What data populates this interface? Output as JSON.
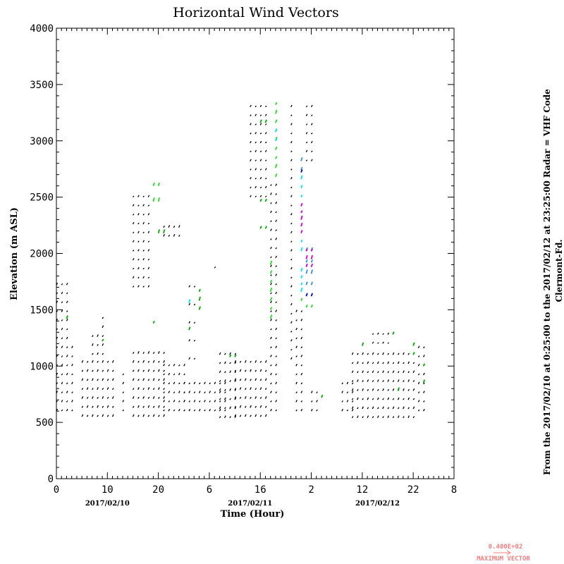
{
  "chart_data": {
    "type": "scatter",
    "title": "Horizontal Wind Vectors",
    "xlabel": "Time (Hour)",
    "ylabel": "Elevation (m ASL)",
    "xlim": [
      0,
      78
    ],
    "ylim": [
      0,
      4000
    ],
    "x_ticks": [
      {
        "value": 0,
        "label": "0"
      },
      {
        "value": 10,
        "label": "10"
      },
      {
        "value": 20,
        "label": "20"
      },
      {
        "value": 30,
        "label": "6"
      },
      {
        "value": 40,
        "label": "16"
      },
      {
        "value": 50,
        "label": "2"
      },
      {
        "value": 60,
        "label": "12"
      },
      {
        "value": 70,
        "label": "22"
      },
      {
        "value": 78,
        "label": "8"
      }
    ],
    "y_ticks": [
      0,
      500,
      1000,
      1500,
      2000,
      2500,
      3000,
      3500,
      4000
    ],
    "dates": [
      {
        "x": 10,
        "label": "2017/02/10"
      },
      {
        "x": 38,
        "label": "2017/02/11"
      },
      {
        "x": 63,
        "label": "2017/02/12"
      }
    ],
    "side_text": [
      "From the 2017/02/10 at  0:25:00 to the 2017/02/12 at 23:25:00 Radar = VHF Code",
      "Clermont-Fd."
    ],
    "max_vector": {
      "value": "0.400E+02",
      "label": "MAXIMUM VECTOR"
    },
    "grid": false,
    "color_scale": {
      "black": "#000000",
      "green": "#00aa00",
      "lime": "#22dd22",
      "cyan": "#00e5ee",
      "steel": "#3a8fd0",
      "blue": "#0000cc",
      "magenta": "#cc00cc"
    },
    "series": [
      {
        "x_start": 0,
        "x_end": 2,
        "x_step": 1,
        "y_start": 600,
        "y_end": 1780,
        "y_step": 80,
        "color": "black"
      },
      {
        "x_start": 3,
        "x_end": 3,
        "x_step": 1,
        "y_start": 600,
        "y_end": 1180,
        "y_step": 80,
        "color": "black"
      },
      {
        "x_start": 5,
        "x_end": 11,
        "x_step": 1,
        "y_start": 550,
        "y_end": 1060,
        "y_step": 80,
        "color": "black"
      },
      {
        "x_start": 7,
        "x_end": 9,
        "x_step": 1,
        "y_start": 1100,
        "y_end": 1280,
        "y_step": 80,
        "color": "black"
      },
      {
        "x_start": 9,
        "x_end": 9,
        "x_step": 1,
        "y_start": 1340,
        "y_end": 1420,
        "y_step": 80,
        "color": "black"
      },
      {
        "x_start": 13,
        "x_end": 13,
        "x_step": 1,
        "y_start": 600,
        "y_end": 980,
        "y_step": 80,
        "color": "black"
      },
      {
        "x_start": 15,
        "x_end": 21,
        "x_step": 1,
        "y_start": 550,
        "y_end": 1140,
        "y_step": 80,
        "color": "black"
      },
      {
        "x_start": 15,
        "x_end": 18,
        "x_step": 1,
        "y_start": 1700,
        "y_end": 2520,
        "y_step": 80,
        "color": "black"
      },
      {
        "x_start": 21,
        "x_end": 25,
        "x_step": 1,
        "y_start": 600,
        "y_end": 1060,
        "y_step": 80,
        "color": "black"
      },
      {
        "x_start": 21,
        "x_end": 24,
        "x_step": 1,
        "y_start": 2150,
        "y_end": 2230,
        "y_step": 80,
        "color": "black"
      },
      {
        "x_start": 25,
        "x_end": 33,
        "x_step": 1,
        "y_start": 600,
        "y_end": 900,
        "y_step": 80,
        "color": "black"
      },
      {
        "x_start": 26,
        "x_end": 27,
        "x_step": 1,
        "y_start": 1060,
        "y_end": 1700,
        "y_step": 160,
        "color": "black"
      },
      {
        "x_start": 31,
        "x_end": 31,
        "x_step": 1,
        "y_start": 1870,
        "y_end": 1870,
        "y_step": 80,
        "color": "black"
      },
      {
        "x_start": 32,
        "x_end": 35,
        "x_step": 1,
        "y_start": 540,
        "y_end": 1140,
        "y_step": 80,
        "color": "black"
      },
      {
        "x_start": 35,
        "x_end": 41,
        "x_step": 1,
        "y_start": 550,
        "y_end": 1060,
        "y_step": 80,
        "color": "black"
      },
      {
        "x_start": 38,
        "x_end": 41,
        "x_step": 1,
        "y_start": 2500,
        "y_end": 3300,
        "y_step": 80,
        "color": "black"
      },
      {
        "x_start": 42,
        "x_end": 43,
        "x_step": 1,
        "y_start": 600,
        "y_end": 2600,
        "y_step": 80,
        "color": "black"
      },
      {
        "x_start": 46,
        "x_end": 46,
        "x_step": 1,
        "y_start": 1060,
        "y_end": 3300,
        "y_step": 80,
        "color": "black"
      },
      {
        "x_start": 47,
        "x_end": 48,
        "x_step": 1,
        "y_start": 600,
        "y_end": 1500,
        "y_step": 80,
        "color": "black"
      },
      {
        "x_start": 50,
        "x_end": 50,
        "x_step": 1,
        "y_start": 600,
        "y_end": 820,
        "y_step": 80,
        "color": "black"
      },
      {
        "x_start": 49,
        "x_end": 50,
        "x_step": 1,
        "y_start": 2820,
        "y_end": 3320,
        "y_step": 80,
        "color": "black"
      },
      {
        "x_start": 51,
        "x_end": 51,
        "x_step": 1,
        "y_start": 600,
        "y_end": 820,
        "y_step": 80,
        "color": "black"
      },
      {
        "x_start": 56,
        "x_end": 58,
        "x_step": 1,
        "y_start": 600,
        "y_end": 840,
        "y_step": 80,
        "color": "black"
      },
      {
        "x_start": 58,
        "x_end": 70,
        "x_step": 1,
        "y_start": 540,
        "y_end": 1100,
        "y_step": 80,
        "color": "black"
      },
      {
        "x_start": 62,
        "x_end": 65,
        "x_step": 1,
        "y_start": 1200,
        "y_end": 1350,
        "y_step": 80,
        "color": "black"
      },
      {
        "x_start": 71,
        "x_end": 72,
        "x_step": 1,
        "y_start": 600,
        "y_end": 1200,
        "y_step": 80,
        "color": "black"
      },
      {
        "x_start": 2,
        "x_end": 2,
        "x_step": 1,
        "y_start": 1420,
        "y_end": 1420,
        "y_step": 80,
        "color": "green"
      },
      {
        "x_start": 9,
        "x_end": 9,
        "x_step": 1,
        "y_start": 1220,
        "y_end": 1220,
        "y_step": 80,
        "color": "green"
      },
      {
        "x_start": 19,
        "x_end": 19,
        "x_step": 1,
        "y_start": 1380,
        "y_end": 1380,
        "y_step": 80,
        "color": "green"
      },
      {
        "x_start": 20,
        "x_end": 21,
        "x_step": 1,
        "y_start": 2180,
        "y_end": 2180,
        "y_step": 80,
        "color": "green"
      },
      {
        "x_start": 26,
        "x_end": 26,
        "x_step": 1,
        "y_start": 1320,
        "y_end": 1320,
        "y_step": 80,
        "color": "green"
      },
      {
        "x_start": 28,
        "x_end": 28,
        "x_step": 1,
        "y_start": 1500,
        "y_end": 1660,
        "y_step": 80,
        "color": "green"
      },
      {
        "x_start": 34,
        "x_end": 35,
        "x_step": 1,
        "y_start": 1080,
        "y_end": 1080,
        "y_step": 80,
        "color": "green"
      },
      {
        "x_start": 40,
        "x_end": 41,
        "x_step": 1,
        "y_start": 2220,
        "y_end": 2460,
        "y_step": 240,
        "color": "green"
      },
      {
        "x_start": 40,
        "x_end": 41,
        "x_step": 1,
        "y_start": 3160,
        "y_end": 3160,
        "y_step": 80,
        "color": "green"
      },
      {
        "x_start": 60,
        "x_end": 60,
        "x_step": 1,
        "y_start": 1180,
        "y_end": 1180,
        "y_step": 80,
        "color": "green"
      },
      {
        "x_start": 66,
        "x_end": 66,
        "x_step": 1,
        "y_start": 1280,
        "y_end": 1280,
        "y_step": 80,
        "color": "green"
      },
      {
        "x_start": 67,
        "x_end": 67,
        "x_step": 1,
        "y_start": 780,
        "y_end": 780,
        "y_step": 80,
        "color": "green"
      },
      {
        "x_start": 70,
        "x_end": 70,
        "x_step": 1,
        "y_start": 1100,
        "y_end": 1180,
        "y_step": 80,
        "color": "green"
      },
      {
        "x_start": 72,
        "x_end": 72,
        "x_step": 1,
        "y_start": 850,
        "y_end": 1000,
        "y_step": 150,
        "color": "green"
      },
      {
        "x_start": 52,
        "x_end": 52,
        "x_step": 1,
        "y_start": 720,
        "y_end": 720,
        "y_step": 80,
        "color": "green"
      },
      {
        "x_start": 19,
        "x_end": 20,
        "x_step": 1,
        "y_start": 2460,
        "y_end": 2600,
        "y_step": 140,
        "color": "lime"
      },
      {
        "x_start": 42,
        "x_end": 42,
        "x_step": 1,
        "y_start": 1420,
        "y_end": 1960,
        "y_step": 80,
        "color": "lime"
      },
      {
        "x_start": 43,
        "x_end": 43,
        "x_step": 1,
        "y_start": 2680,
        "y_end": 3340,
        "y_step": 80,
        "color": "lime"
      },
      {
        "x_start": 48,
        "x_end": 48,
        "x_step": 1,
        "y_start": 1580,
        "y_end": 1580,
        "y_step": 80,
        "color": "lime"
      },
      {
        "x_start": 49,
        "x_end": 50,
        "x_step": 1,
        "y_start": 1520,
        "y_end": 1520,
        "y_step": 80,
        "color": "lime"
      },
      {
        "x_start": 26,
        "x_end": 26,
        "x_step": 1,
        "y_start": 1560,
        "y_end": 1600,
        "y_step": 80,
        "color": "cyan"
      },
      {
        "x_start": 43,
        "x_end": 43,
        "x_step": 1,
        "y_start": 3000,
        "y_end": 3080,
        "y_step": 80,
        "color": "cyan"
      },
      {
        "x_start": 48,
        "x_end": 48,
        "x_step": 1,
        "y_start": 1660,
        "y_end": 1840,
        "y_step": 60,
        "color": "cyan"
      },
      {
        "x_start": 48,
        "x_end": 48,
        "x_step": 1,
        "y_start": 2020,
        "y_end": 2100,
        "y_step": 80,
        "color": "cyan"
      },
      {
        "x_start": 48,
        "x_end": 48,
        "x_step": 1,
        "y_start": 2500,
        "y_end": 2660,
        "y_step": 80,
        "color": "cyan"
      },
      {
        "x_start": 48,
        "x_end": 48,
        "x_step": 1,
        "y_start": 2740,
        "y_end": 2820,
        "y_step": 80,
        "color": "steel"
      },
      {
        "x_start": 49,
        "x_end": 50,
        "x_step": 1,
        "y_start": 1720,
        "y_end": 2020,
        "y_step": 100,
        "color": "steel"
      },
      {
        "x_start": 49,
        "x_end": 50,
        "x_step": 1,
        "y_start": 1620,
        "y_end": 1620,
        "y_step": 80,
        "color": "blue"
      },
      {
        "x_start": 48,
        "x_end": 48,
        "x_step": 1,
        "y_start": 2720,
        "y_end": 2720,
        "y_step": 80,
        "color": "blue"
      },
      {
        "x_start": 48,
        "x_end": 48,
        "x_step": 1,
        "y_start": 2180,
        "y_end": 2420,
        "y_step": 60,
        "color": "magenta"
      },
      {
        "x_start": 49,
        "x_end": 50,
        "x_step": 1,
        "y_start": 1880,
        "y_end": 2020,
        "y_step": 70,
        "color": "magenta"
      }
    ]
  }
}
